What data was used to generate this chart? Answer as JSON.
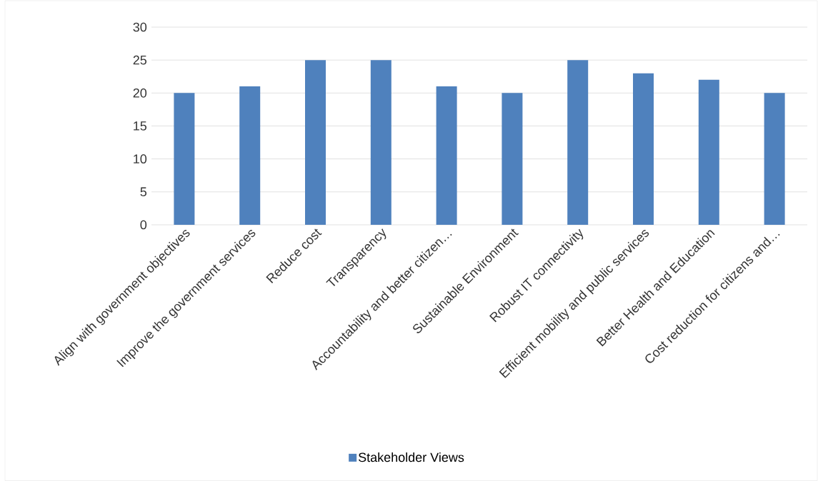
{
  "chart_data": {
    "type": "bar",
    "categories": [
      "Align with government objectives",
      "Improve the government services",
      "Reduce cost",
      "Transparency",
      "Accountability and better citizen…",
      "Sustainable Environment",
      "Robust IT connectivity",
      "Efficient mobility and public services",
      "Better Health and Education",
      "Cost reduction for citizens and…"
    ],
    "series": [
      {
        "name": "Stakeholder Views",
        "color": "#4f81bd",
        "values": [
          20,
          21,
          25,
          25,
          21,
          20,
          25,
          23,
          22,
          20
        ]
      }
    ],
    "ylim": [
      0,
      30
    ],
    "yticks": [
      0,
      5,
      10,
      15,
      20,
      25,
      30
    ],
    "grid": "y",
    "legend": "bottom"
  }
}
